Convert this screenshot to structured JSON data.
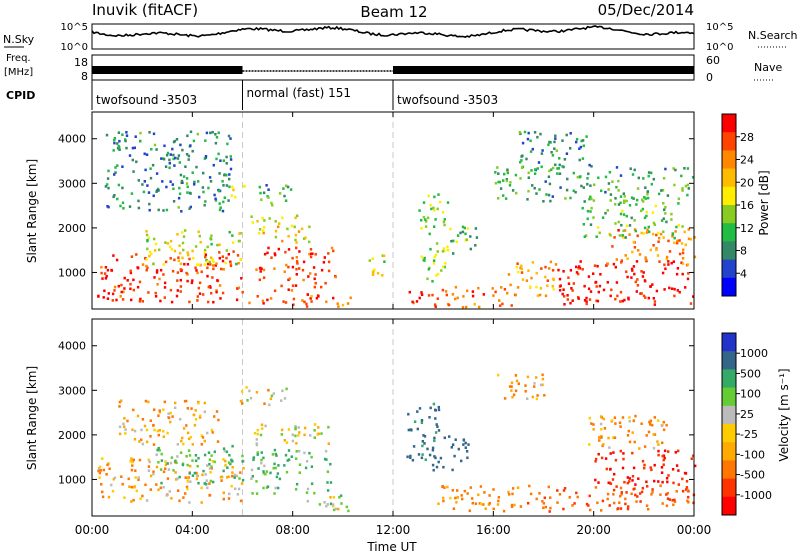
{
  "header": {
    "station": "Inuvik (fitACF)",
    "beam": "Beam 12",
    "date": "05/Dec/2014"
  },
  "top_panel": {
    "left_label": "N.Sky",
    "right_label": "N.Search",
    "left_ticks": [
      "10^5",
      "10^0"
    ],
    "right_ticks": [
      "10^5",
      "10^0"
    ]
  },
  "freq_panel": {
    "left_label_line1": "Freq.",
    "left_label_line2": "[MHz]",
    "right_label": "Nave",
    "left_ticks": [
      "18",
      "8"
    ],
    "right_ticks": [
      "60",
      "0"
    ]
  },
  "cpid": {
    "label": "CPID",
    "segments": [
      {
        "start_ut": 0,
        "end_ut": 6,
        "label": "twofsound -3503"
      },
      {
        "start_ut": 6,
        "end_ut": 12,
        "label": "normal (fast) 151"
      },
      {
        "start_ut": 12,
        "end_ut": 24,
        "label": "twofsound -3503"
      }
    ]
  },
  "colors": {
    "frame": "#000000",
    "noise_trace": "#000000",
    "divider": "#bbbbbb"
  },
  "chart_data": [
    {
      "type": "heatmap",
      "ylabel": "Slant Range [km]",
      "xlabel": "",
      "x_ticks": [
        "00:00",
        "04:00",
        "08:00",
        "12:00",
        "16:00",
        "20:00",
        "00:00"
      ],
      "xlim_ut": [
        0,
        24
      ],
      "ylim": [
        180,
        4600
      ],
      "y_ticks": [
        1000,
        2000,
        3000,
        4000
      ],
      "colorbar": {
        "label": "Power [dB]",
        "ticks": [
          "28",
          "24",
          "20",
          "16",
          "12",
          "8",
          "4"
        ],
        "colors": [
          "#ff0000",
          "#ff4400",
          "#ff8800",
          "#ffbb00",
          "#ffee00",
          "#88cc22",
          "#22bb44",
          "#338866",
          "#2244cc",
          "#0000ff"
        ]
      },
      "blobs": [
        {
          "t": 0.2,
          "t2": 6.0,
          "r": 350,
          "r2": 1500,
          "v": 27
        },
        {
          "t": 2.0,
          "t2": 6.0,
          "r": 1200,
          "r2": 2000,
          "v": 14
        },
        {
          "t": 5.5,
          "t2": 6.2,
          "r": 2700,
          "r2": 3100,
          "v": 18
        },
        {
          "t": 6.5,
          "t2": 9.7,
          "r": 700,
          "r2": 1600,
          "v": 26
        },
        {
          "t": 6.2,
          "t2": 9.0,
          "r": 300,
          "r2": 650,
          "v": 26
        },
        {
          "t": 6.3,
          "t2": 8.8,
          "r": 1700,
          "r2": 2300,
          "v": 16
        },
        {
          "t": 6.5,
          "t2": 8.0,
          "r": 2500,
          "r2": 3000,
          "v": 8
        },
        {
          "t": 8.5,
          "t2": 10.3,
          "r": 250,
          "r2": 500,
          "v": 24
        },
        {
          "t": 11.0,
          "t2": 11.8,
          "r": 900,
          "r2": 1600,
          "v": 14
        },
        {
          "t": 12.5,
          "t2": 14.0,
          "r": 250,
          "r2": 650,
          "v": 27
        },
        {
          "t": 13.0,
          "t2": 14.2,
          "r": 800,
          "r2": 2800,
          "v": 12
        },
        {
          "t": 14.2,
          "t2": 15.4,
          "r": 1400,
          "r2": 2100,
          "v": 10
        },
        {
          "t": 14.0,
          "t2": 17.0,
          "r": 250,
          "r2": 700,
          "v": 24
        },
        {
          "t": 16.5,
          "t2": 18.5,
          "r": 500,
          "r2": 1300,
          "v": 20
        },
        {
          "t": 18.5,
          "t2": 24.0,
          "r": 300,
          "r2": 1300,
          "v": 28
        },
        {
          "t": 20.5,
          "t2": 24.0,
          "r": 1200,
          "r2": 2000,
          "v": 22
        },
        {
          "t": 19.5,
          "t2": 23.5,
          "r": 1800,
          "r2": 2600,
          "v": 10
        },
        {
          "t": 16.0,
          "t2": 24.0,
          "r": 2600,
          "r2": 3400,
          "v": 8
        },
        {
          "t": 17.0,
          "t2": 20.0,
          "r": 3400,
          "r2": 4200,
          "v": 6
        },
        {
          "t": 0.5,
          "t2": 5.5,
          "r": 2400,
          "r2": 4200,
          "v": 6
        }
      ]
    },
    {
      "type": "heatmap",
      "ylabel": "Slant Range [km]",
      "xlabel": "Time UT",
      "x_ticks": [
        "00:00",
        "04:00",
        "08:00",
        "12:00",
        "16:00",
        "20:00",
        "00:00"
      ],
      "xlim_ut": [
        0,
        24
      ],
      "ylim": [
        180,
        4600
      ],
      "y_ticks": [
        1000,
        2000,
        3000,
        4000
      ],
      "colorbar": {
        "label": "Velocity [m s⁻¹]",
        "ticks": [
          "1000",
          "500",
          "100",
          "25",
          "-25",
          "-100",
          "-500",
          "-1000"
        ],
        "colors": [
          "#2233cc",
          "#336688",
          "#33aa66",
          "#66cc33",
          "#bbbbbb",
          "#ffcc00",
          "#ffaa00",
          "#ff7700",
          "#ff3300",
          "#ff0000"
        ]
      },
      "blobs": [
        {
          "t": 0.2,
          "t2": 6.0,
          "r": 500,
          "r2": 1500,
          "v": -60
        },
        {
          "t": 2.5,
          "t2": 6.0,
          "r": 900,
          "r2": 1800,
          "v": 200
        },
        {
          "t": 5.8,
          "t2": 7.8,
          "r": 2700,
          "r2": 3100,
          "v": 0
        },
        {
          "t": 6.3,
          "t2": 9.5,
          "r": 700,
          "r2": 1700,
          "v": 200
        },
        {
          "t": 6.2,
          "t2": 9.5,
          "r": 1800,
          "r2": 2300,
          "v": 60
        },
        {
          "t": 8.5,
          "t2": 10.5,
          "r": 300,
          "r2": 700,
          "v": 100
        },
        {
          "t": 12.5,
          "t2": 13.8,
          "r": 1400,
          "r2": 2800,
          "v": 600
        },
        {
          "t": 13.5,
          "t2": 15.0,
          "r": 1200,
          "r2": 2000,
          "v": 800
        },
        {
          "t": 13.5,
          "t2": 17.0,
          "r": 300,
          "r2": 900,
          "v": -150
        },
        {
          "t": 17.0,
          "t2": 24.0,
          "r": 300,
          "r2": 900,
          "v": -300
        },
        {
          "t": 20.0,
          "t2": 24.0,
          "r": 900,
          "r2": 1700,
          "v": -500
        },
        {
          "t": 19.5,
          "t2": 23.0,
          "r": 1700,
          "r2": 2500,
          "v": -80
        },
        {
          "t": 16.0,
          "t2": 18.0,
          "r": 2800,
          "r2": 3400,
          "v": -100
        },
        {
          "t": 1.0,
          "t2": 5.0,
          "r": 1800,
          "r2": 2800,
          "v": -60
        }
      ]
    }
  ]
}
